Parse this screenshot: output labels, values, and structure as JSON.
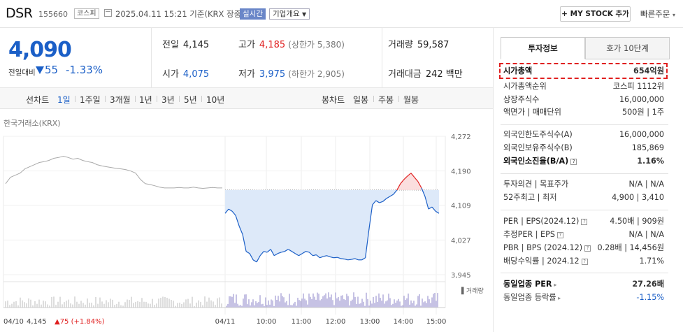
{
  "header": {
    "name": "DSR",
    "code": "155660",
    "market_badge": "코스피",
    "datetime": "2025.04.11 15:21 기준(KRX 장중)",
    "live_badge": "실시간",
    "corp_overview": "기업개요",
    "mystock_button": "+ MY STOCK 추가",
    "quick_order": "빠른주문"
  },
  "price": {
    "current": "4,090",
    "compare_label": "전일대비",
    "change": "55",
    "change_pct": "-1.33%"
  },
  "stats": {
    "prev_close_label": "전일",
    "prev_close": "4,145",
    "high_label": "고가",
    "high": "4,185",
    "upper_limit": "(상한가 5,380)",
    "volume_label": "거래량",
    "volume": "59,587",
    "open_label": "시가",
    "open": "4,075",
    "low_label": "저가",
    "low": "3,975",
    "lower_limit": "(하한가 2,905)",
    "amount_label": "거래대금",
    "amount": "242 백만"
  },
  "period_tabs": {
    "line_chart": "선차트",
    "items": [
      "1일",
      "1주일",
      "3개월",
      "1년",
      "3년",
      "5년",
      "10년"
    ],
    "selected": "1일",
    "candle_chart": "봉차트",
    "candle_items": [
      "일봉",
      "주봉",
      "월봉"
    ]
  },
  "chart_source": "한국거래소(KRX)",
  "chart_data": {
    "type": "line",
    "ylim": [
      3945,
      4272
    ],
    "y_ticks": [
      "4,272",
      "4,190",
      "4,109",
      "4,027",
      "3,945"
    ],
    "x_ticks": [
      "04/11",
      "10:00",
      "11:00",
      "12:00",
      "13:00",
      "14:00",
      "15:00"
    ],
    "baseline": 4145,
    "prev_day_label": "04/10",
    "prev_day_price": "4,145",
    "prev_day_change": "▲75 (+1.84%)",
    "volume_label": "거래량",
    "prev_series": [
      4160,
      4175,
      4180,
      4185,
      4195,
      4200,
      4205,
      4210,
      4212,
      4215,
      4220,
      4222,
      4225,
      4222,
      4218,
      4220,
      4215,
      4212,
      4210,
      4205,
      4202,
      4200,
      4198,
      4196,
      4195,
      4193,
      4190,
      4185,
      4170,
      4160,
      4158,
      4155,
      4152,
      4150,
      4150,
      4150,
      4151,
      4150,
      4150,
      4152,
      4150,
      4149,
      4150,
      4151,
      4150,
      4150
    ],
    "today_series": [
      4090,
      4100,
      4095,
      4085,
      4060,
      4040,
      4000,
      3995,
      3980,
      3975,
      3990,
      4000,
      3998,
      4005,
      3990,
      3995,
      3998,
      4000,
      4005,
      4000,
      3995,
      3990,
      3995,
      4000,
      3998,
      3990,
      3992,
      3985,
      3988,
      3990,
      3987,
      3985,
      3986,
      3983,
      3982,
      3980,
      3981,
      3983,
      3980,
      3980,
      3985,
      4050,
      4110,
      4120,
      4115,
      4118,
      4125,
      4130,
      4135,
      4145,
      4160,
      4170,
      4178,
      4185,
      4175,
      4165,
      4150,
      4130,
      4100,
      4105,
      4095,
      4090
    ]
  },
  "right_panel": {
    "tab_active": "투자정보",
    "tab_inactive": "호가 10단계",
    "rows": [
      {
        "label": "시가총액",
        "value": "654억원"
      },
      {
        "label": "시가총액순위",
        "value": "코스피 1112위"
      },
      {
        "label": "상장주식수",
        "value": "16,000,000"
      },
      {
        "label": "액면가 | 매매단위",
        "value": "500원 | 1주"
      },
      {
        "label": "외국인한도주식수(A)",
        "value": "16,000,000"
      },
      {
        "label": "외국인보유주식수(B)",
        "value": "185,869"
      },
      {
        "label": "외국인소진율(B/A)",
        "value": "1.16%"
      },
      {
        "label": "투자의견 | 목표주가",
        "value": "N/A | N/A"
      },
      {
        "label": "52주최고 | 최저",
        "value": "4,900 | 3,410"
      },
      {
        "label": "PER | EPS(2024.12)",
        "value": "4.50배 | 909원"
      },
      {
        "label": "추정PER | EPS",
        "value": "N/A | N/A"
      },
      {
        "label": "PBR | BPS (2024.12)",
        "value": "0.28배 | 14,456원"
      },
      {
        "label": "배당수익률 | 2024.12",
        "value": "1.71%"
      },
      {
        "label": "동일업종 PER",
        "value": "27.26배"
      },
      {
        "label": "동일업종 등락률",
        "value": "-1.15%"
      }
    ]
  },
  "colors": {
    "up": "#e02020",
    "down": "#1b5fc7",
    "accent": "#6a86c8"
  }
}
